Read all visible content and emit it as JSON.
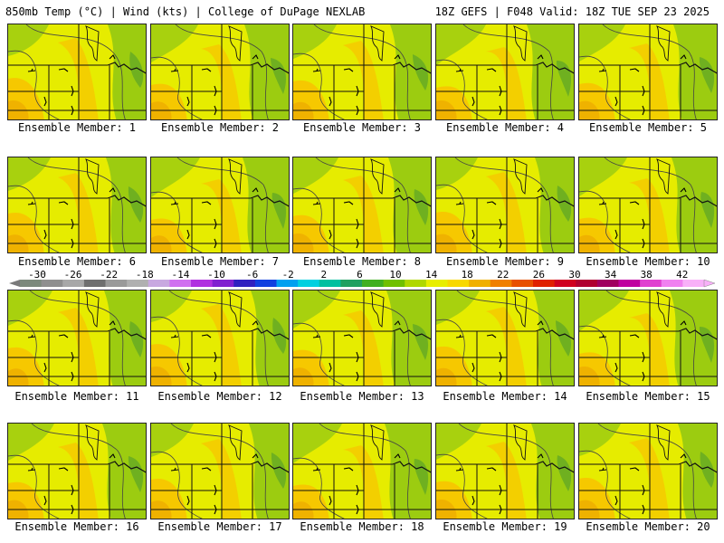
{
  "header": {
    "title_left": "850mb Temp (°C) | Wind (kts) | College of DuPage NEXLAB",
    "title_right": "18Z GEFS | F048 Valid: 18Z TUE SEP 23 2025"
  },
  "members": [
    {
      "label": "Ensemble Member: 1"
    },
    {
      "label": "Ensemble Member: 2"
    },
    {
      "label": "Ensemble Member: 3"
    },
    {
      "label": "Ensemble Member: 4"
    },
    {
      "label": "Ensemble Member: 5"
    },
    {
      "label": "Ensemble Member: 6"
    },
    {
      "label": "Ensemble Member: 7"
    },
    {
      "label": "Ensemble Member: 8"
    },
    {
      "label": "Ensemble Member: 9"
    },
    {
      "label": "Ensemble Member: 10"
    },
    {
      "label": "Ensemble Member: 11"
    },
    {
      "label": "Ensemble Member: 12"
    },
    {
      "label": "Ensemble Member: 13"
    },
    {
      "label": "Ensemble Member: 14"
    },
    {
      "label": "Ensemble Member: 15"
    },
    {
      "label": "Ensemble Member: 16"
    },
    {
      "label": "Ensemble Member: 17"
    },
    {
      "label": "Ensemble Member: 18"
    },
    {
      "label": "Ensemble Member: 19"
    },
    {
      "label": "Ensemble Member: 20"
    }
  ],
  "colorbar": {
    "ticks": [
      "-30",
      "-26",
      "-22",
      "-18",
      "-14",
      "-10",
      "-6",
      "-2",
      "2",
      "6",
      "10",
      "14",
      "18",
      "22",
      "26",
      "30",
      "34",
      "38",
      "42"
    ],
    "colors": [
      "#7c8a7c",
      "#8f8f8f",
      "#a8a8a8",
      "#6f6f6f",
      "#9a9a9a",
      "#b0b0b0",
      "#c8a8e0",
      "#d070f0",
      "#b030e0",
      "#8020d0",
      "#3020c0",
      "#1040e0",
      "#00a0f0",
      "#00d0e0",
      "#00c0a0",
      "#20a060",
      "#40b020",
      "#70c000",
      "#b0d800",
      "#e8ee00",
      "#f8d800",
      "#f0b000",
      "#f08000",
      "#e85000",
      "#e02000",
      "#d00020",
      "#b00030",
      "#a00060",
      "#c000a0",
      "#e040d0",
      "#f080f0",
      "#f8b0f8"
    ]
  },
  "map_style": {
    "base": "#e6ec00",
    "green": "#9ccc10",
    "green_dark": "#6fb020",
    "orange": "#f6c800",
    "orange_dark": "#eda800",
    "line": "#444444"
  }
}
